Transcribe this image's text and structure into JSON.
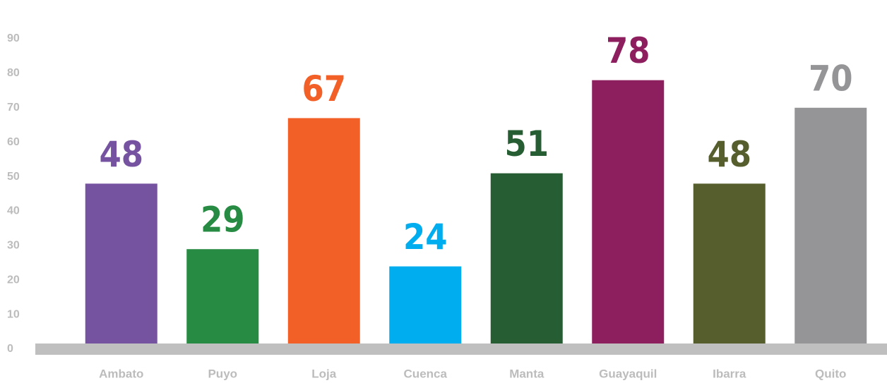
{
  "chart_data": {
    "type": "bar",
    "categories": [
      "Ambato",
      "Puyo",
      "Loja",
      "Cuenca",
      "Manta",
      "Guayaquil",
      "Ibarra",
      "Quito"
    ],
    "series": [
      {
        "values": [
          48,
          29,
          67,
          24,
          51,
          78,
          48,
          70
        ],
        "colors": [
          "#7653a1",
          "#288b44",
          "#f26027",
          "#00adee",
          "#275d32",
          "#8e1f5f",
          "#555e2c",
          "#959598"
        ]
      }
    ],
    "ylim": [
      0,
      90
    ],
    "yticks": [
      0,
      10,
      20,
      30,
      40,
      50,
      60,
      70,
      80,
      90
    ]
  }
}
